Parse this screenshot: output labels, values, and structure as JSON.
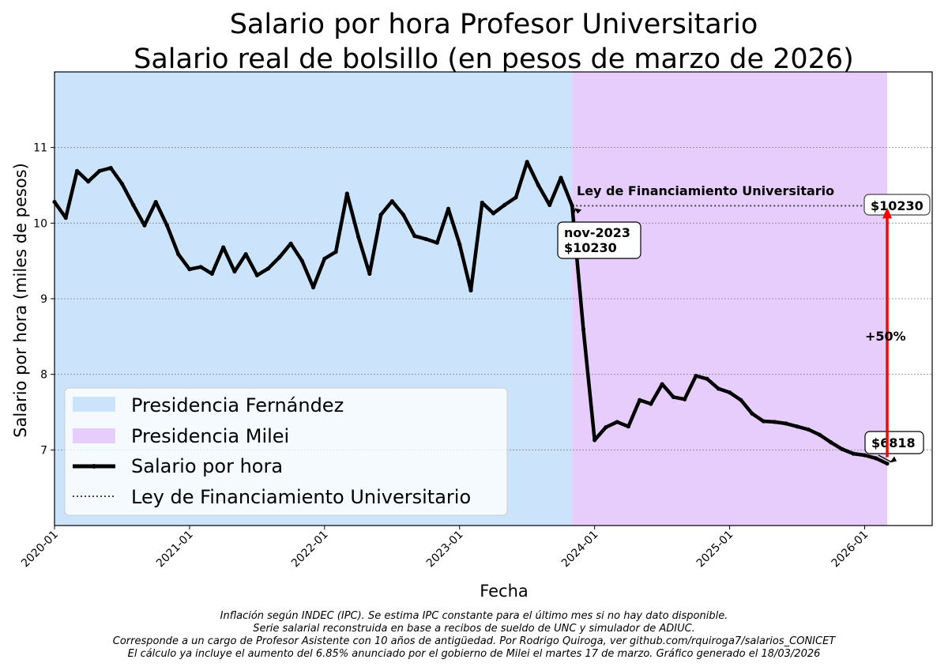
{
  "chart_data": {
    "type": "line",
    "title_line1": "Salario por hora Profesor Universitario",
    "title_line2": "Salario real de bolsillo (en pesos de marzo de 2026)",
    "xlabel": "Fecha",
    "ylabel": "Salario por hora (miles de pesos)",
    "x_range": [
      "2020-01",
      "2026-07"
    ],
    "ylim": [
      6.0,
      12.0
    ],
    "y_ticks": [
      7,
      8,
      9,
      10,
      11
    ],
    "x_ticks": [
      "2020-01",
      "2021-01",
      "2022-01",
      "2023-01",
      "2024-01",
      "2025-01",
      "2026-01"
    ],
    "grid": "horizontal dotted",
    "regions": [
      {
        "name": "Presidencia Fernández",
        "start": "2020-01",
        "end": "2023-11",
        "color": "#cce4fb"
      },
      {
        "name": "Presidencia Milei",
        "start": "2023-11",
        "end": "2026-03",
        "color": "#e6cdfb"
      }
    ],
    "series": [
      {
        "name": "Salario por hora",
        "color": "#000000",
        "points": [
          [
            "2020-01",
            10.28
          ],
          [
            "2020-02",
            10.07
          ],
          [
            "2020-03",
            10.69
          ],
          [
            "2020-04",
            10.55
          ],
          [
            "2020-05",
            10.69
          ],
          [
            "2020-06",
            10.73
          ],
          [
            "2020-07",
            10.52
          ],
          [
            "2020-08",
            10.24
          ],
          [
            "2020-09",
            9.97
          ],
          [
            "2020-10",
            10.28
          ],
          [
            "2020-11",
            9.97
          ],
          [
            "2020-12",
            9.59
          ],
          [
            "2021-01",
            9.39
          ],
          [
            "2021-02",
            9.42
          ],
          [
            "2021-03",
            9.33
          ],
          [
            "2021-04",
            9.68
          ],
          [
            "2021-05",
            9.36
          ],
          [
            "2021-06",
            9.59
          ],
          [
            "2021-07",
            9.31
          ],
          [
            "2021-08",
            9.4
          ],
          [
            "2021-09",
            9.55
          ],
          [
            "2021-10",
            9.73
          ],
          [
            "2021-11",
            9.5
          ],
          [
            "2021-12",
            9.15
          ],
          [
            "2022-01",
            9.53
          ],
          [
            "2022-02",
            9.62
          ],
          [
            "2022-03",
            10.39
          ],
          [
            "2022-04",
            9.82
          ],
          [
            "2022-05",
            9.33
          ],
          [
            "2022-06",
            10.11
          ],
          [
            "2022-07",
            10.29
          ],
          [
            "2022-08",
            10.11
          ],
          [
            "2022-09",
            9.83
          ],
          [
            "2022-10",
            9.79
          ],
          [
            "2022-11",
            9.74
          ],
          [
            "2022-12",
            10.19
          ],
          [
            "2023-01",
            9.72
          ],
          [
            "2023-02",
            9.11
          ],
          [
            "2023-03",
            10.27
          ],
          [
            "2023-04",
            10.13
          ],
          [
            "2023-05",
            10.24
          ],
          [
            "2023-06",
            10.34
          ],
          [
            "2023-07",
            10.81
          ],
          [
            "2023-08",
            10.5
          ],
          [
            "2023-09",
            10.24
          ],
          [
            "2023-10",
            10.6
          ],
          [
            "2023-11",
            10.23
          ],
          [
            "2023-12",
            8.6
          ],
          [
            "2024-01",
            7.13
          ],
          [
            "2024-02",
            7.3
          ],
          [
            "2024-03",
            7.37
          ],
          [
            "2024-04",
            7.31
          ],
          [
            "2024-05",
            7.66
          ],
          [
            "2024-06",
            7.61
          ],
          [
            "2024-07",
            7.87
          ],
          [
            "2024-08",
            7.7
          ],
          [
            "2024-09",
            7.67
          ],
          [
            "2024-10",
            7.98
          ],
          [
            "2024-11",
            7.94
          ],
          [
            "2024-12",
            7.81
          ],
          [
            "2025-01",
            7.76
          ],
          [
            "2025-02",
            7.66
          ],
          [
            "2025-03",
            7.48
          ],
          [
            "2025-04",
            7.38
          ],
          [
            "2025-05",
            7.37
          ],
          [
            "2025-06",
            7.35
          ],
          [
            "2025-07",
            7.31
          ],
          [
            "2025-08",
            7.27
          ],
          [
            "2025-09",
            7.2
          ],
          [
            "2025-10",
            7.1
          ],
          [
            "2025-11",
            7.01
          ],
          [
            "2025-12",
            6.95
          ],
          [
            "2026-01",
            6.93
          ],
          [
            "2026-02",
            6.89
          ],
          [
            "2026-03",
            6.82
          ]
        ]
      },
      {
        "name": "Ley de Financiamiento Universitario",
        "color": "#444444",
        "style": "dotted",
        "points": [
          [
            "2023-11",
            10.23
          ],
          [
            "2026-03",
            10.23
          ]
        ]
      }
    ],
    "annotations": {
      "ley_label": "Ley de Financiamiento Universitario",
      "nov_line1": "nov-2023",
      "nov_line2": "$10230",
      "ley_value": "$10230",
      "last_value": "$6818",
      "increase": "+50%"
    },
    "legend": {
      "placement": "lower-left",
      "items": [
        "Presidencia Fernández",
        "Presidencia Milei",
        "Salario por hora",
        "Ley de Financiamiento Universitario"
      ]
    }
  },
  "footnotes": [
    "Inflación según INDEC (IPC). Se estima IPC constante para el último mes si no hay dato disponible.",
    "Serie salarial reconstruida en base a recibos de sueldo de UNC y simulador de ADIUC.",
    "Corresponde a un cargo de Profesor Asistente con 10 años de antigüedad. Por Rodrigo Quiroga, ver github.com/rquiroga7/salarios_CONICET",
    "El cálculo ya incluye el aumento del 6.85% anunciado por el gobierno de Milei el martes 17 de marzo. Gráfico generado el 18/03/2026"
  ]
}
